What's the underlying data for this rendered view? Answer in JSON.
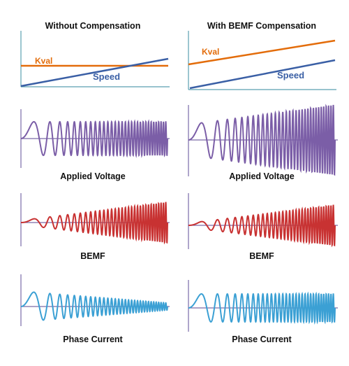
{
  "columns": [
    {
      "title": "Without Compensation",
      "header": {
        "kval_label": "Kval",
        "speed_label": "Speed"
      },
      "panels": [
        {
          "caption": "Applied Voltage"
        },
        {
          "caption": "BEMF"
        },
        {
          "caption": "Phase Current"
        }
      ]
    },
    {
      "title": "With BEMF Compensation",
      "header": {
        "kval_label": "Kval",
        "speed_label": "Speed"
      },
      "panels": [
        {
          "caption": "Applied Voltage"
        },
        {
          "caption": "BEMF"
        },
        {
          "caption": "Phase Current"
        }
      ]
    }
  ],
  "colors": {
    "kval": "#e36c0a",
    "speed": "#3a5fa5",
    "voltage": "#7b5ea7",
    "bemf": "#c83232",
    "current": "#3ba0d4",
    "axis": "#7a6aa8",
    "header_axis": "#5a9fb0"
  }
}
